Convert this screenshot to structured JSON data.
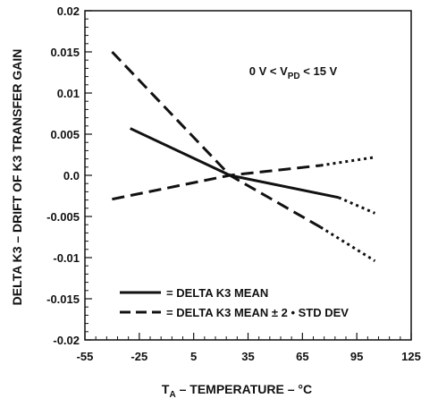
{
  "chart_data": {
    "type": "line",
    "xlabel": "T",
    "xlabel_sub": "A",
    "xlabel_rest": " – TEMPERATURE – °C",
    "ylabel": "DELTA K3 – DRIFT OF K3 TRANSFER GAIN",
    "xlim": [
      -55,
      125
    ],
    "ylim": [
      -0.02,
      0.02
    ],
    "xticks": [
      -55,
      -25,
      5,
      35,
      65,
      95,
      125
    ],
    "xtick_labels": [
      "-55",
      "-25",
      "5",
      "35",
      "65",
      "95",
      "125"
    ],
    "yticks": [
      0.02,
      0.015,
      0.01,
      0.005,
      0.0,
      -0.005,
      -0.01,
      -0.015,
      -0.02
    ],
    "ytick_labels": [
      "0.02",
      "0.015",
      "0.01",
      "0.005",
      "0.0",
      "-0.005",
      "-0.01",
      "-0.015",
      "-0.02"
    ],
    "grid": false,
    "annotation": {
      "pre": "0 V < V",
      "sub": "PD",
      "post": " < 15 V"
    },
    "legend": {
      "placement": "bottom-left",
      "entries": [
        {
          "label": "= DELTA K3 MEAN",
          "style": "solid"
        },
        {
          "label": "= DELTA K3 MEAN ± 2 • STD DEV",
          "style": "dashed"
        }
      ]
    },
    "series": [
      {
        "name": "DELTA K3 MEAN",
        "style": "solid",
        "x": [
          -30,
          25,
          85,
          105
        ],
        "y": [
          0.0057,
          0.0,
          -0.0027,
          -0.0046
        ],
        "dotted_from_index": 2
      },
      {
        "name": "DELTA K3 MEAN + 2 • STD DEV",
        "style": "dashed",
        "x": [
          -40,
          25,
          75,
          105
        ],
        "y": [
          -0.0029,
          0.0,
          0.0012,
          0.0022
        ],
        "dotted_from_index": 2
      },
      {
        "name": "DELTA K3 MEAN - 2 • STD DEV",
        "style": "dashed",
        "x": [
          -40,
          25,
          75,
          105
        ],
        "y": [
          0.015,
          0.0,
          -0.0063,
          -0.0104
        ],
        "dotted_from_index": 2
      }
    ]
  }
}
